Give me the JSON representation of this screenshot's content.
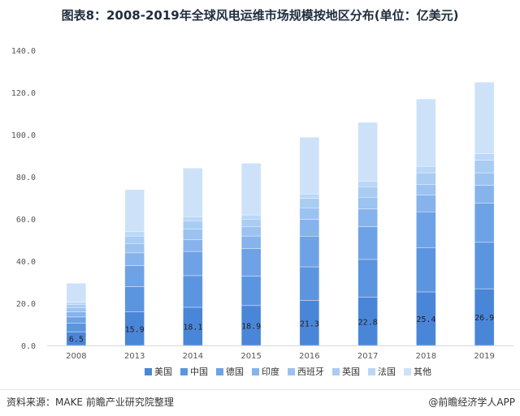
{
  "title": "图表8：2008-2019年全球风电运维市场规模按地区分布(单位：亿美元)",
  "source": "资料来源：MAKE 前瞻产业研究院整理",
  "brand": "@前瞻经济学人APP",
  "chart_data": {
    "type": "bar",
    "stacked": true,
    "categories": [
      "2008",
      "2013",
      "2014",
      "2015",
      "2016",
      "2017",
      "2018",
      "2019"
    ],
    "ylim": [
      0,
      140
    ],
    "yticks": [
      "0.0",
      "20.0",
      "40.0",
      "60.0",
      "80.0",
      "100.0",
      "120.0",
      "140.0"
    ],
    "grid": false,
    "legend_position": "bottom",
    "series": [
      {
        "name": "美国",
        "color": "#4a86d8",
        "values": [
          6.5,
          15.9,
          18.1,
          18.9,
          21.3,
          22.8,
          25.4,
          26.9
        ]
      },
      {
        "name": "中国",
        "color": "#5b95e0",
        "values": [
          4.0,
          12.0,
          15.0,
          14.0,
          16.0,
          18.0,
          21.0,
          22.0
        ]
      },
      {
        "name": "德国",
        "color": "#6ea2e6",
        "values": [
          3.0,
          10.0,
          11.5,
          13.0,
          14.5,
          15.5,
          17.0,
          18.5
        ]
      },
      {
        "name": "印度",
        "color": "#86b3ec",
        "values": [
          2.5,
          6.0,
          5.5,
          6.0,
          8.0,
          8.5,
          8.0,
          8.5
        ]
      },
      {
        "name": "西班牙",
        "color": "#9bc2f0",
        "values": [
          2.0,
          4.5,
          5.0,
          4.5,
          5.5,
          5.5,
          5.0,
          6.0
        ]
      },
      {
        "name": "英国",
        "color": "#a9ccf3",
        "values": [
          1.5,
          3.5,
          4.0,
          3.5,
          4.5,
          5.0,
          5.5,
          6.0
        ]
      },
      {
        "name": "法国",
        "color": "#b9d7f6",
        "values": [
          1.0,
          2.0,
          2.0,
          2.0,
          2.0,
          2.5,
          3.0,
          3.0
        ]
      },
      {
        "name": "其他",
        "color": "#cde2f9",
        "values": [
          9.0,
          20.0,
          23.0,
          24.5,
          27.0,
          28.0,
          32.0,
          34.0
        ]
      }
    ],
    "data_labels": [
      "6.5",
      "15.9",
      "18.1",
      "18.9",
      "21.3",
      "22.8",
      "25.4",
      "26.9"
    ]
  }
}
